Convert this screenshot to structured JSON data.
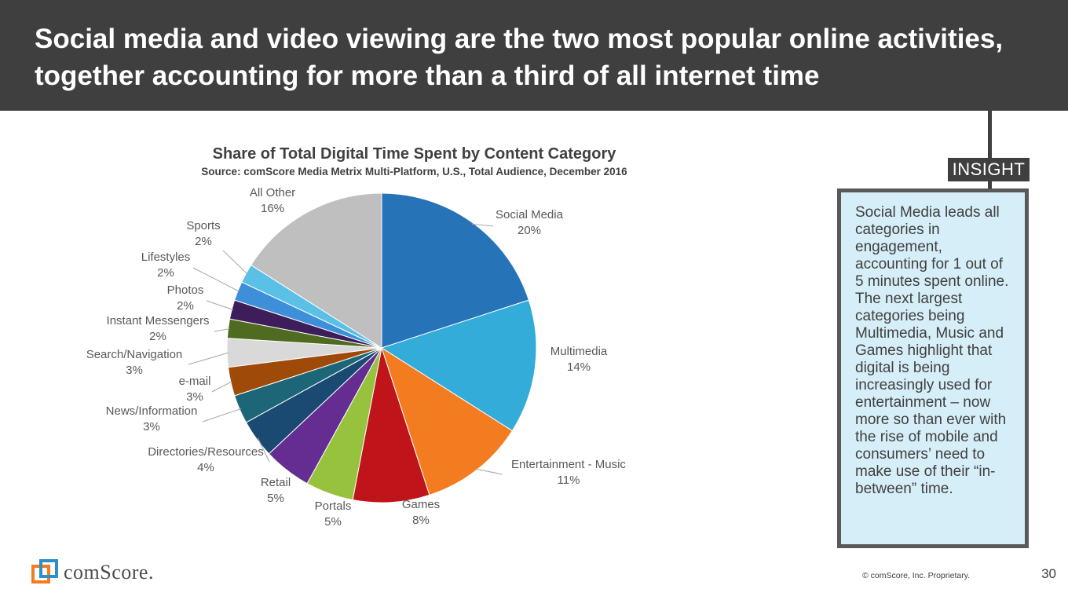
{
  "header": {
    "title": "Social media and video viewing are the two most popular online activities, together accounting for more than a third of all internet time"
  },
  "chart_data": {
    "type": "pie",
    "title": "Share of Total Digital Time Spent by Content Category",
    "subtitle": "Source: comScore Media Metrix Multi-Platform, U.S., Total Audience, December 2016",
    "unit": "%",
    "slices": [
      {
        "label": "Social Media",
        "value": 20,
        "display": "20%",
        "color": "#2673b8"
      },
      {
        "label": "Multimedia",
        "value": 14,
        "display": "14%",
        "color": "#33acd9"
      },
      {
        "label": "Entertainment - Music",
        "value": 11,
        "display": "11%",
        "color": "#f47c20"
      },
      {
        "label": "Games",
        "value": 8,
        "display": "8%",
        "color": "#c0141b"
      },
      {
        "label": "Portals",
        "value": 5,
        "display": "5%",
        "color": "#96c23e"
      },
      {
        "label": "Retail",
        "value": 5,
        "display": "5%",
        "color": "#652d91"
      },
      {
        "label": "Directories/Resources",
        "value": 4,
        "display": "4%",
        "color": "#1a4a72"
      },
      {
        "label": "News/Information",
        "value": 3,
        "display": "3%",
        "color": "#1d6678"
      },
      {
        "label": "e-mail",
        "value": 3,
        "display": "3%",
        "color": "#a04a0a"
      },
      {
        "label": "Search/Navigation",
        "value": 3,
        "display": "3%",
        "color": "#d9d9d9"
      },
      {
        "label": "Instant Messengers",
        "value": 2,
        "display": "2%",
        "color": "#4f6b1f"
      },
      {
        "label": "Photos",
        "value": 2,
        "display": "2%",
        "color": "#3d1e5a"
      },
      {
        "label": "Lifestyles",
        "value": 2,
        "display": "2%",
        "color": "#3d8fd9"
      },
      {
        "label": "Sports",
        "value": 2,
        "display": "2%",
        "color": "#5bc0e6"
      },
      {
        "label": "All Other",
        "value": 16,
        "display": "16%",
        "color": "#bfbfbf"
      }
    ],
    "legend": "none"
  },
  "insight": {
    "label": "INSIGHT",
    "text": "Social Media leads all categories in engagement, accounting for 1 out of 5 minutes spent online. The next largest categories being Multimedia, Music and Games highlight that digital is being increasingly used for entertainment – now more so than ever with the rise of mobile and consumers’ need to make use of their “in-between” time."
  },
  "footer": {
    "logo_text": "comScore.",
    "logo_icon": "comscore-logo-icon",
    "copyright": "© comScore, Inc. Proprietary.",
    "page_number": "30"
  }
}
